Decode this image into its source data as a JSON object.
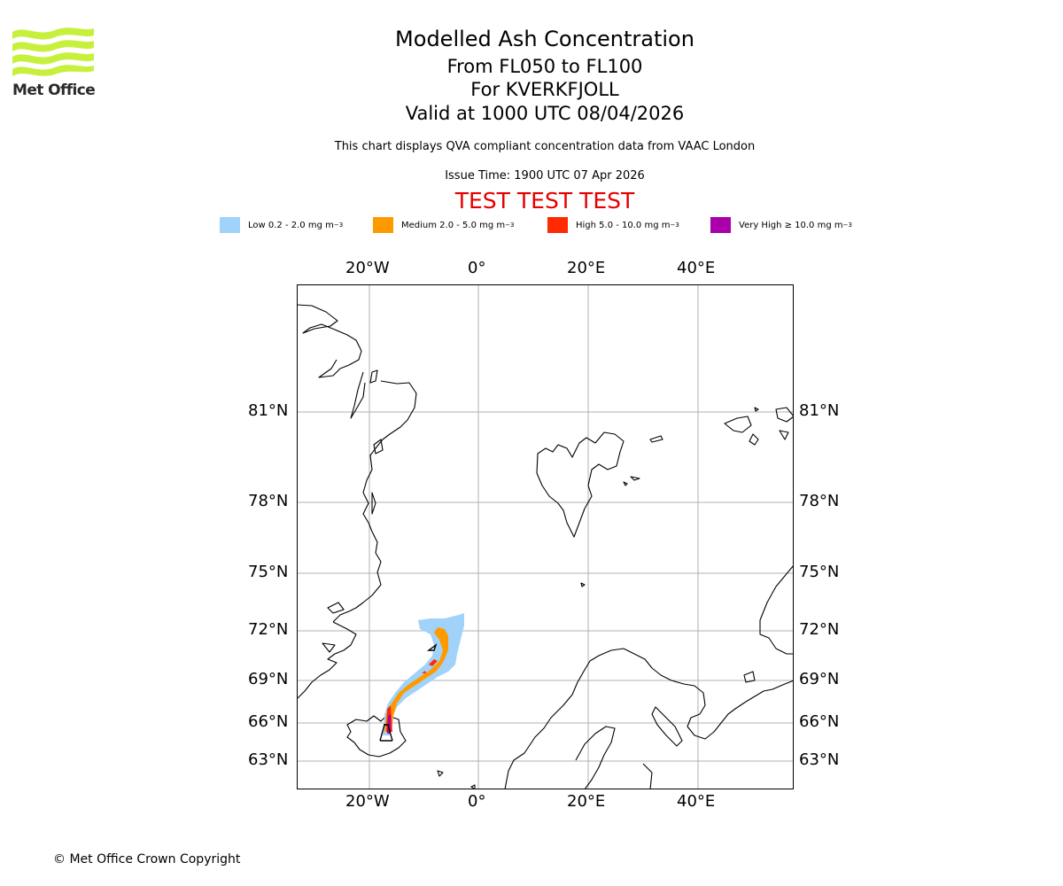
{
  "branding": {
    "logo_text": "Met Office",
    "logo_color": "#c7f03c",
    "logo_text_color": "#2a2a2a"
  },
  "header": {
    "title": "Modelled Ash Concentration",
    "flight_levels": "From FL050 to FL100",
    "volcano": "For KVERKFJOLL",
    "valid_time": "Valid at 1000 UTC 08/04/2026",
    "description": "This chart displays QVA compliant concentration data from VAAC London",
    "issue_time": "Issue Time: 1900 UTC 07 Apr 2026",
    "test_banner": "TEST TEST TEST",
    "test_banner_color": "#e60000"
  },
  "legend": [
    {
      "label": "Low 0.2 - 2.0 mg m",
      "exp": "−3",
      "color": "#a0d2fa"
    },
    {
      "label": "Medium 2.0 - 5.0 mg m",
      "exp": "−3",
      "color": "#ff9900"
    },
    {
      "label": "High 5.0 - 10.0 mg m",
      "exp": "−3",
      "color": "#ff2a00"
    },
    {
      "label": "Very High  ≥  10.0 mg m",
      "exp": "−3",
      "color": "#aa00aa"
    }
  ],
  "map": {
    "lon_labels": [
      "20°W",
      "0°",
      "20°E",
      "40°E"
    ],
    "lat_labels": [
      "81°N",
      "78°N",
      "75°N",
      "72°N",
      "69°N",
      "66°N",
      "63°N"
    ],
    "volcano_marker": "KVERKFJOLL (64.65°N, 16.7°W)"
  },
  "footer": {
    "copyright": "© Met Office Crown Copyright"
  }
}
